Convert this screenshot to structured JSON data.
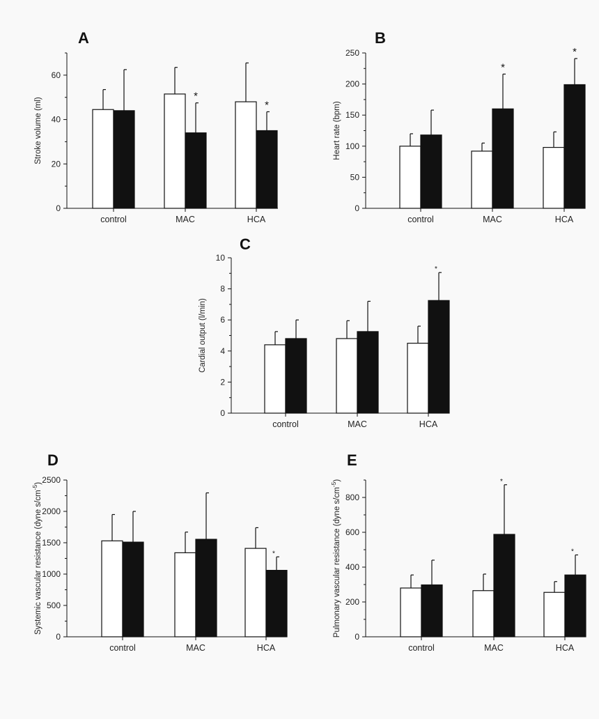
{
  "chart_data": [
    {
      "panel": "A",
      "type": "bar",
      "ylabel": "Stroke volume (ml)",
      "categories": [
        "control",
        "MAC",
        "HCA"
      ],
      "ylim": [
        0,
        70
      ],
      "yticks": [
        0,
        20,
        40,
        60
      ],
      "series": [
        {
          "fill": "#ffffff",
          "values": [
            44.5,
            51.5,
            48
          ],
          "errors": [
            9,
            12,
            17.5
          ]
        },
        {
          "fill": "#111111",
          "values": [
            44,
            34,
            35
          ],
          "errors": [
            18.5,
            13.5,
            8.5
          ],
          "starred": [
            false,
            true,
            true
          ]
        }
      ]
    },
    {
      "panel": "B",
      "type": "bar",
      "ylabel": "Heart rate (bpm)",
      "categories": [
        "control",
        "MAC",
        "HCA"
      ],
      "ylim": [
        0,
        250
      ],
      "yticks": [
        0,
        50,
        100,
        150,
        200,
        250
      ],
      "series": [
        {
          "fill": "#ffffff",
          "values": [
            100,
            92,
            98
          ],
          "errors": [
            20,
            13,
            25
          ]
        },
        {
          "fill": "#111111",
          "values": [
            118,
            160,
            199
          ],
          "errors": [
            40,
            56,
            42
          ],
          "starred": [
            false,
            true,
            true
          ]
        }
      ]
    },
    {
      "panel": "C",
      "type": "bar",
      "ylabel": "Cardial output (l/min)",
      "categories": [
        "control",
        "MAC",
        "HCA"
      ],
      "ylim": [
        0,
        10
      ],
      "yticks": [
        0,
        2,
        4,
        6,
        8,
        10
      ],
      "series": [
        {
          "fill": "#ffffff",
          "values": [
            4.4,
            4.8,
            4.5
          ],
          "errors": [
            0.85,
            1.15,
            1.1
          ]
        },
        {
          "fill": "#111111",
          "values": [
            4.8,
            5.25,
            7.25
          ],
          "errors": [
            1.2,
            1.95,
            1.8
          ],
          "starred": [
            false,
            false,
            true
          ]
        }
      ]
    },
    {
      "panel": "D",
      "type": "bar",
      "ylabel": "Systemic vascular resistance (dyne s/cm",
      "ylabel_sup": "-5",
      "ylabel_suffix": ")",
      "categories": [
        "control",
        "MAC",
        "HCA"
      ],
      "ylim": [
        0,
        2500
      ],
      "yticks": [
        0,
        500,
        1000,
        1500,
        2000,
        2500
      ],
      "series": [
        {
          "fill": "#ffffff",
          "values": [
            1530,
            1340,
            1410
          ],
          "errors": [
            420,
            330,
            330
          ]
        },
        {
          "fill": "#111111",
          "values": [
            1510,
            1555,
            1060
          ],
          "errors": [
            490,
            740,
            215
          ],
          "starred": [
            false,
            false,
            true
          ]
        }
      ]
    },
    {
      "panel": "E",
      "type": "bar",
      "ylabel": "Pulmonary vascular resistance (dyne s/cm",
      "ylabel_sup": "-5",
      "ylabel_suffix": ")",
      "categories": [
        "control",
        "MAC",
        "HCA"
      ],
      "ylim": [
        0,
        900
      ],
      "yticks": [
        0,
        200,
        400,
        600,
        800
      ],
      "series": [
        {
          "fill": "#ffffff",
          "values": [
            280,
            265,
            255
          ],
          "errors": [
            75,
            95,
            62
          ]
        },
        {
          "fill": "#111111",
          "values": [
            298,
            588,
            355
          ],
          "errors": [
            142,
            285,
            115
          ],
          "starred": [
            false,
            true,
            true
          ]
        }
      ]
    }
  ]
}
